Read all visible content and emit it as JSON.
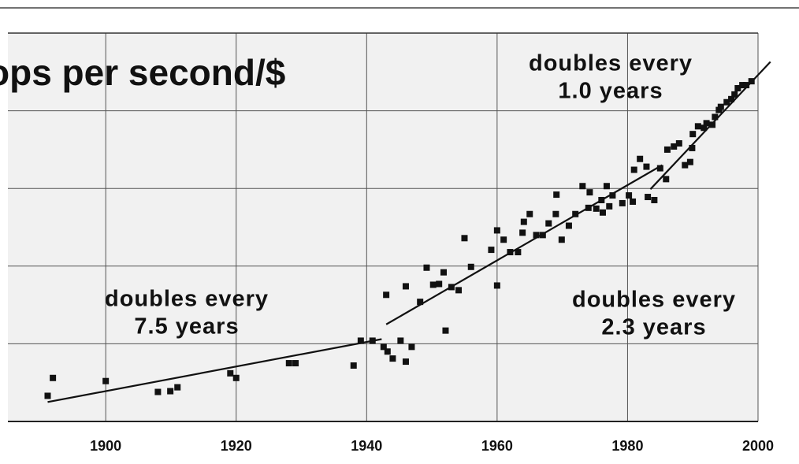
{
  "chart_data": {
    "type": "scatter",
    "title": "ops per second/$",
    "xlim": [
      1885,
      2000
    ],
    "xticks": [
      1900,
      1920,
      1940,
      1960,
      1980,
      2000
    ],
    "ylim": [
      0,
      5
    ],
    "yticks": [
      1,
      2,
      3,
      4
    ],
    "grid": true,
    "series": [
      {
        "color": "#111111",
        "x": [
          1891.1,
          1891.9,
          1900,
          1908,
          1909.9,
          1911,
          1919.1,
          1920,
          1928.1,
          1929.1,
          1938,
          1939.1,
          1940.9,
          1943,
          1942.6,
          1943.2,
          1944,
          1945.2,
          1946,
          1946.9,
          1946,
          1948.2,
          1949.2,
          1950.2,
          1951.1,
          1951.8,
          1952.1,
          1953,
          1954.1,
          1955,
          1956,
          1959.1,
          1960,
          1960,
          1961,
          1962,
          1963.2,
          1963.9,
          1964.1,
          1965,
          1966,
          1967,
          1967.9,
          1969,
          1969.1,
          1969.9,
          1971,
          1972,
          1973.1,
          1974,
          1974.2,
          1975.2,
          1976,
          1976.2,
          1976.8,
          1977.2,
          1977.7,
          1979.2,
          1980.2,
          1980.8,
          1981,
          1981.9,
          1982.9,
          1983.1,
          1984.1,
          1985,
          1985.9,
          1986.1,
          1987.1,
          1987.9,
          1988.8,
          1989.6,
          1989.9,
          1990,
          1990.8,
          1991.7,
          1992.1,
          1993,
          1993.4,
          1994,
          1994.3,
          1995.2,
          1995.9,
          1996.4,
          1996.9,
          1997.6,
          1998.2,
          1999
        ],
        "values": [
          0.33,
          0.56,
          0.52,
          0.38,
          0.39,
          0.44,
          0.62,
          0.56,
          0.75,
          0.75,
          0.72,
          1.04,
          1.04,
          1.63,
          0.96,
          0.9,
          0.81,
          1.04,
          0.77,
          0.96,
          1.74,
          1.54,
          1.98,
          1.76,
          1.77,
          1.92,
          1.17,
          1.73,
          1.69,
          2.36,
          1.99,
          2.21,
          2.46,
          1.75,
          2.34,
          2.18,
          2.18,
          2.43,
          2.57,
          2.67,
          2.4,
          2.4,
          2.55,
          2.67,
          2.92,
          2.34,
          2.52,
          2.67,
          3.03,
          2.75,
          2.95,
          2.74,
          2.85,
          2.69,
          3.03,
          2.77,
          2.91,
          2.81,
          2.91,
          2.83,
          3.24,
          3.38,
          3.28,
          2.89,
          2.85,
          3.26,
          3.12,
          3.5,
          3.54,
          3.58,
          3.3,
          3.34,
          3.52,
          3.7,
          3.8,
          3.78,
          3.84,
          3.82,
          3.92,
          4.01,
          4.05,
          4.11,
          4.15,
          4.21,
          4.29,
          4.33,
          4.33,
          4.38
        ]
      }
    ],
    "trend_lines": [
      {
        "x": [
          1891.1,
          1942.3
        ],
        "values": [
          0.25,
          1.06
        ]
      },
      {
        "x": [
          1943,
          1985.3
        ],
        "values": [
          1.25,
          3.3
        ]
      },
      {
        "x": [
          1983.5,
          2001.9
        ],
        "values": [
          2.99,
          4.63
        ]
      }
    ],
    "annotations": [
      [
        "doubles every",
        "1.0 years"
      ],
      [
        "doubles every",
        "7.5 years"
      ],
      [
        "doubles every",
        "2.3 years"
      ]
    ]
  }
}
